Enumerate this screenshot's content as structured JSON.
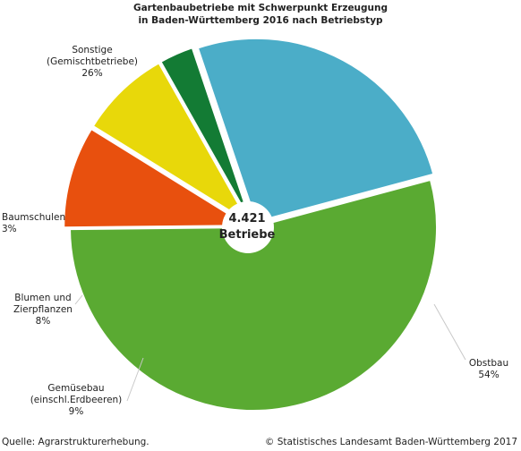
{
  "title_line1": "Gartenbaubetriebe mit Schwerpunkt Erzeugung",
  "title_line2": "in Baden-Württemberg 2016 nach Betriebstyp",
  "center": {
    "value": "4.421",
    "unit": "Betriebe"
  },
  "labels": {
    "sonstige": {
      "name1": "Sonstige",
      "name2": "(Gemischtbetriebe)",
      "pct": "26%"
    },
    "baumschulen": {
      "name1": "Baumschulen",
      "pct": "3%"
    },
    "blumen": {
      "name1": "Blumen und",
      "name2": "Zierpflanzen",
      "pct": "8%"
    },
    "gemuese": {
      "name1": "Gemüsebau",
      "name2": "(einschl.Erdbeeren)",
      "pct": "9%"
    },
    "obst": {
      "name1": "Obstbau",
      "pct": "54%"
    }
  },
  "footer": {
    "source": "Quelle: Agrarstrukturerhebung.",
    "copyright": "© Statistisches Landesamt Baden-Württemberg 2017"
  },
  "chart_data": {
    "type": "pie",
    "title": "Gartenbaubetriebe mit Schwerpunkt Erzeugung in Baden-Württemberg 2016 nach Betriebstyp",
    "total": 4421,
    "total_label": "Betriebe",
    "slices": [
      {
        "name": "Obstbau",
        "value": 54,
        "color": "#5aaa32"
      },
      {
        "name": "Gemüsebau (einschl.Erdbeeren)",
        "value": 9,
        "color": "#e8500e"
      },
      {
        "name": "Blumen und Zierpflanzen",
        "value": 8,
        "color": "#e8d80a"
      },
      {
        "name": "Baumschulen",
        "value": 3,
        "color": "#137b34"
      },
      {
        "name": "Sonstige (Gemischtbetriebe)",
        "value": 26,
        "color": "#4badc8"
      }
    ],
    "legend": "none"
  }
}
